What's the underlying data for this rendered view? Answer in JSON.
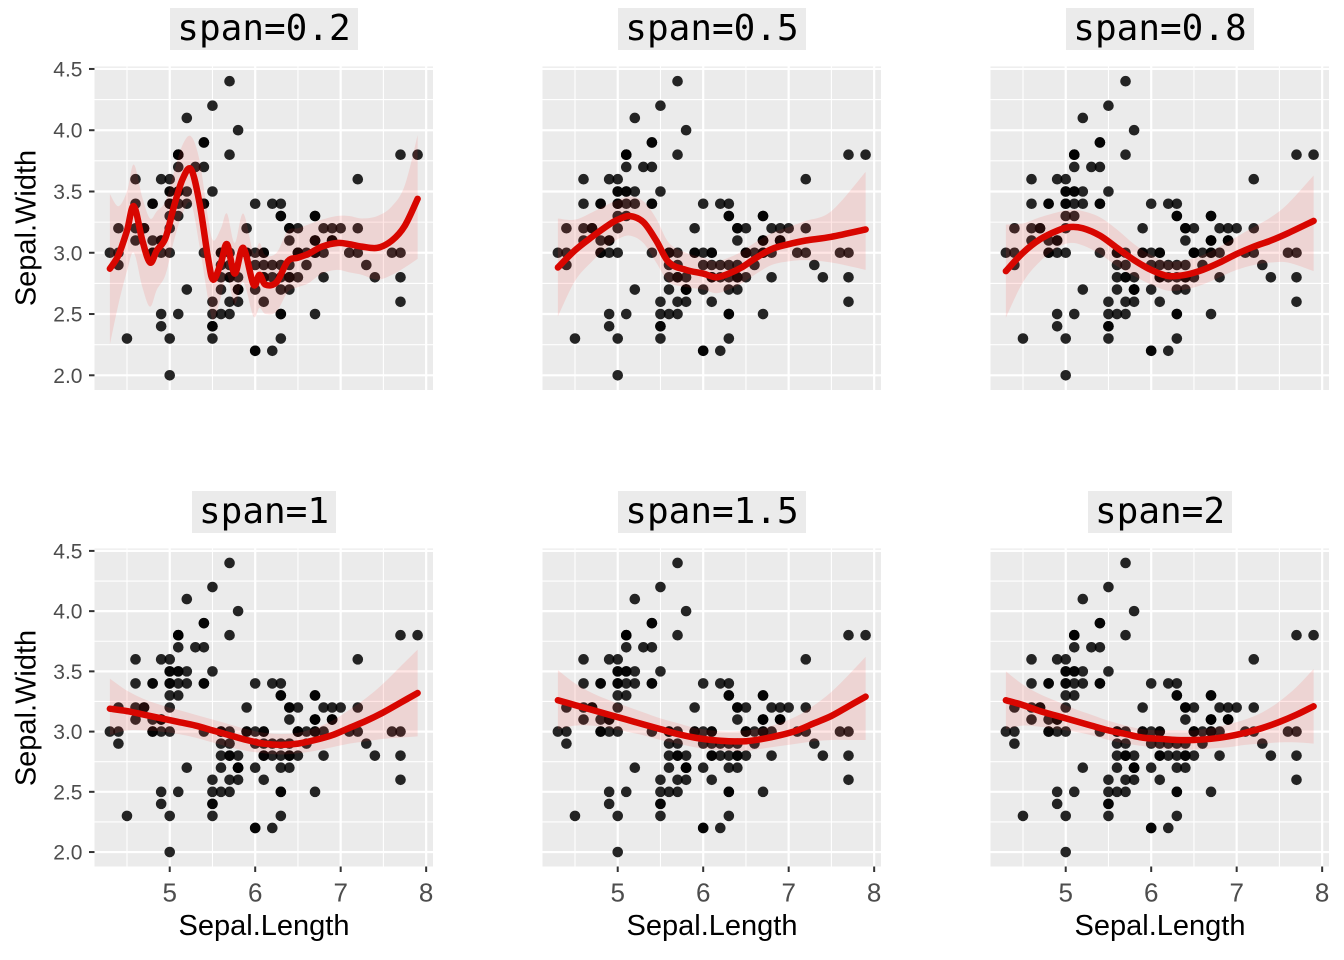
{
  "style": {
    "panel_bg": "#EBEBEB",
    "grid_color": "#FFFFFF",
    "point_color": "#000000",
    "point_opacity": 0.85,
    "line_color": "#D80600",
    "ribbon_fill": "rgba(255,60,55,0.13)",
    "tick_color": "#333333",
    "axis_text_color": "#4D4D4D"
  },
  "chart_data": {
    "type": "scatter",
    "title": "",
    "xlabel": "Sepal.Length",
    "ylabel": "Sepal.Width",
    "xlim": [
      4.12,
      8.08
    ],
    "ylim": [
      1.88,
      4.52
    ],
    "x_tick_values": [
      5,
      6,
      7,
      8
    ],
    "x_tick_labels": [
      "5",
      "6",
      "7",
      "8"
    ],
    "y_tick_values": [
      2.0,
      2.5,
      3.0,
      3.5,
      4.0,
      4.5
    ],
    "y_tick_labels": [
      "2.0",
      "2.5",
      "3.0",
      "3.5",
      "4.0",
      "4.5"
    ],
    "x_minor_ticks": [
      4.5,
      5.5,
      6.5,
      7.5
    ],
    "y_minor_ticks": [
      2.25,
      2.75,
      3.25,
      3.75,
      4.25
    ],
    "grid": "on",
    "legend": "none",
    "points": [
      [
        5.1,
        3.5
      ],
      [
        4.9,
        3.0
      ],
      [
        4.7,
        3.2
      ],
      [
        4.6,
        3.1
      ],
      [
        5.0,
        3.6
      ],
      [
        5.4,
        3.9
      ],
      [
        4.6,
        3.4
      ],
      [
        5.0,
        3.4
      ],
      [
        4.4,
        2.9
      ],
      [
        4.9,
        3.1
      ],
      [
        5.4,
        3.7
      ],
      [
        4.8,
        3.4
      ],
      [
        4.8,
        3.0
      ],
      [
        4.3,
        3.0
      ],
      [
        5.8,
        4.0
      ],
      [
        5.7,
        4.4
      ],
      [
        5.4,
        3.9
      ],
      [
        5.1,
        3.5
      ],
      [
        5.7,
        3.8
      ],
      [
        5.1,
        3.8
      ],
      [
        5.4,
        3.4
      ],
      [
        5.1,
        3.7
      ],
      [
        4.6,
        3.6
      ],
      [
        5.1,
        3.3
      ],
      [
        4.8,
        3.4
      ],
      [
        5.0,
        3.0
      ],
      [
        5.0,
        3.4
      ],
      [
        5.2,
        3.5
      ],
      [
        5.2,
        3.4
      ],
      [
        4.7,
        3.2
      ],
      [
        4.8,
        3.1
      ],
      [
        5.4,
        3.4
      ],
      [
        5.2,
        4.1
      ],
      [
        5.5,
        4.2
      ],
      [
        4.9,
        3.1
      ],
      [
        5.0,
        3.2
      ],
      [
        5.5,
        3.5
      ],
      [
        4.9,
        3.6
      ],
      [
        4.4,
        3.0
      ],
      [
        5.1,
        3.4
      ],
      [
        5.0,
        3.5
      ],
      [
        4.5,
        2.3
      ],
      [
        4.4,
        3.2
      ],
      [
        5.0,
        3.5
      ],
      [
        5.1,
        3.8
      ],
      [
        4.8,
        3.0
      ],
      [
        5.1,
        3.8
      ],
      [
        4.6,
        3.2
      ],
      [
        5.3,
        3.7
      ],
      [
        5.0,
        3.3
      ],
      [
        7.0,
        3.2
      ],
      [
        6.4,
        3.2
      ],
      [
        6.9,
        3.1
      ],
      [
        5.5,
        2.3
      ],
      [
        6.5,
        2.8
      ],
      [
        5.7,
        2.8
      ],
      [
        6.3,
        3.3
      ],
      [
        4.9,
        2.4
      ],
      [
        6.6,
        2.9
      ],
      [
        5.2,
        2.7
      ],
      [
        5.0,
        2.0
      ],
      [
        5.9,
        3.0
      ],
      [
        6.0,
        2.2
      ],
      [
        6.1,
        2.9
      ],
      [
        5.6,
        2.9
      ],
      [
        6.7,
        3.1
      ],
      [
        5.6,
        3.0
      ],
      [
        5.8,
        2.7
      ],
      [
        6.2,
        2.2
      ],
      [
        5.6,
        2.5
      ],
      [
        5.9,
        3.2
      ],
      [
        6.1,
        2.8
      ],
      [
        6.3,
        2.5
      ],
      [
        6.1,
        2.8
      ],
      [
        6.4,
        2.9
      ],
      [
        6.6,
        3.0
      ],
      [
        6.8,
        2.8
      ],
      [
        6.7,
        3.0
      ],
      [
        6.0,
        2.9
      ],
      [
        5.7,
        2.6
      ],
      [
        5.5,
        2.4
      ],
      [
        5.5,
        2.4
      ],
      [
        5.8,
        2.7
      ],
      [
        6.0,
        2.7
      ],
      [
        5.4,
        3.0
      ],
      [
        6.0,
        3.4
      ],
      [
        6.7,
        3.1
      ],
      [
        6.3,
        2.3
      ],
      [
        5.6,
        3.0
      ],
      [
        5.5,
        2.5
      ],
      [
        5.5,
        2.6
      ],
      [
        6.1,
        3.0
      ],
      [
        5.8,
        2.6
      ],
      [
        5.0,
        2.3
      ],
      [
        5.6,
        2.7
      ],
      [
        5.7,
        3.0
      ],
      [
        5.7,
        2.9
      ],
      [
        6.2,
        2.9
      ],
      [
        5.1,
        2.5
      ],
      [
        5.7,
        2.8
      ],
      [
        6.3,
        3.3
      ],
      [
        5.8,
        2.7
      ],
      [
        7.1,
        3.0
      ],
      [
        6.3,
        2.9
      ],
      [
        6.5,
        3.0
      ],
      [
        7.6,
        3.0
      ],
      [
        4.9,
        2.5
      ],
      [
        7.3,
        2.9
      ],
      [
        6.7,
        2.5
      ],
      [
        7.2,
        3.6
      ],
      [
        6.5,
        3.2
      ],
      [
        6.4,
        2.7
      ],
      [
        6.8,
        3.0
      ],
      [
        5.7,
        2.5
      ],
      [
        5.8,
        2.8
      ],
      [
        6.4,
        3.2
      ],
      [
        6.5,
        3.0
      ],
      [
        7.7,
        3.8
      ],
      [
        7.7,
        2.6
      ],
      [
        6.0,
        2.2
      ],
      [
        6.9,
        3.2
      ],
      [
        5.6,
        2.8
      ],
      [
        7.7,
        2.8
      ],
      [
        6.3,
        2.7
      ],
      [
        6.7,
        3.3
      ],
      [
        7.2,
        3.2
      ],
      [
        6.2,
        2.8
      ],
      [
        6.1,
        3.0
      ],
      [
        6.4,
        2.8
      ],
      [
        7.2,
        3.0
      ],
      [
        7.4,
        2.8
      ],
      [
        7.9,
        3.8
      ],
      [
        6.4,
        2.8
      ],
      [
        6.3,
        2.8
      ],
      [
        6.1,
        2.6
      ],
      [
        7.7,
        3.0
      ],
      [
        6.3,
        3.4
      ],
      [
        6.4,
        3.1
      ],
      [
        6.0,
        3.0
      ],
      [
        6.9,
        3.1
      ],
      [
        6.7,
        3.1
      ],
      [
        6.9,
        3.1
      ],
      [
        5.8,
        2.7
      ],
      [
        6.8,
        3.2
      ],
      [
        6.7,
        3.3
      ],
      [
        6.7,
        3.0
      ],
      [
        6.3,
        2.5
      ],
      [
        6.5,
        3.0
      ],
      [
        6.2,
        3.4
      ],
      [
        5.9,
        3.0
      ]
    ],
    "panels": [
      {
        "title": "span=0.2",
        "span": 0.2,
        "smooth": {
          "x": [
            4.3,
            4.4,
            4.5,
            4.58,
            4.68,
            4.77,
            4.85,
            4.95,
            5.05,
            5.15,
            5.25,
            5.35,
            5.45,
            5.51,
            5.6,
            5.67,
            5.76,
            5.86,
            5.98,
            6.05,
            6.12,
            6.25,
            6.38,
            6.5,
            6.62,
            6.78,
            6.96,
            7.1,
            7.25,
            7.43,
            7.6,
            7.75,
            7.9
          ],
          "y": [
            2.87,
            2.98,
            3.18,
            3.38,
            3.1,
            2.92,
            3.02,
            3.12,
            3.38,
            3.6,
            3.68,
            3.4,
            2.95,
            2.78,
            2.92,
            3.07,
            2.83,
            3.04,
            2.74,
            2.82,
            2.74,
            2.76,
            2.93,
            2.96,
            2.99,
            3.05,
            3.08,
            3.07,
            3.05,
            3.04,
            3.1,
            3.22,
            3.44
          ],
          "lo": [
            2.25,
            2.58,
            2.85,
            3.0,
            2.72,
            2.56,
            2.7,
            2.82,
            3.1,
            3.32,
            3.4,
            3.05,
            2.62,
            2.45,
            2.64,
            2.82,
            2.58,
            2.76,
            2.48,
            2.55,
            2.5,
            2.52,
            2.68,
            2.72,
            2.75,
            2.83,
            2.86,
            2.84,
            2.82,
            2.78,
            2.82,
            2.88,
            2.95
          ],
          "hi": [
            3.48,
            3.38,
            3.5,
            3.72,
            3.45,
            3.28,
            3.34,
            3.42,
            3.66,
            3.88,
            3.95,
            3.75,
            3.28,
            3.1,
            3.2,
            3.32,
            3.08,
            3.32,
            3.0,
            3.08,
            2.98,
            3.0,
            3.18,
            3.2,
            3.23,
            3.27,
            3.3,
            3.3,
            3.28,
            3.3,
            3.38,
            3.55,
            3.96
          ]
        }
      },
      {
        "title": "span=0.5",
        "span": 0.5,
        "smooth": {
          "x": [
            4.3,
            4.5,
            4.7,
            4.9,
            5.0,
            5.14,
            5.3,
            5.45,
            5.6,
            5.8,
            6.0,
            6.15,
            6.3,
            6.45,
            6.6,
            6.8,
            7.0,
            7.2,
            7.5,
            7.9
          ],
          "y": [
            2.88,
            3.02,
            3.13,
            3.23,
            3.27,
            3.3,
            3.25,
            3.1,
            2.92,
            2.86,
            2.83,
            2.8,
            2.83,
            2.88,
            2.95,
            3.03,
            3.07,
            3.1,
            3.13,
            3.19
          ],
          "lo": [
            2.48,
            2.77,
            2.93,
            3.06,
            3.11,
            3.14,
            3.08,
            2.92,
            2.76,
            2.72,
            2.7,
            2.67,
            2.7,
            2.75,
            2.82,
            2.9,
            2.93,
            2.94,
            2.92,
            2.86
          ],
          "hi": [
            3.28,
            3.27,
            3.33,
            3.4,
            3.43,
            3.46,
            3.42,
            3.28,
            3.08,
            3.0,
            2.96,
            2.93,
            2.96,
            3.01,
            3.08,
            3.16,
            3.21,
            3.26,
            3.34,
            3.66
          ]
        }
      },
      {
        "title": "span=0.8",
        "span": 0.8,
        "smooth": {
          "x": [
            4.3,
            4.5,
            4.7,
            4.9,
            5.05,
            5.2,
            5.4,
            5.6,
            5.8,
            6.0,
            6.2,
            6.4,
            6.6,
            6.8,
            7.0,
            7.2,
            7.4,
            7.6,
            7.9
          ],
          "y": [
            2.85,
            3.0,
            3.11,
            3.18,
            3.21,
            3.2,
            3.14,
            3.04,
            2.94,
            2.86,
            2.81,
            2.82,
            2.86,
            2.92,
            2.99,
            3.05,
            3.1,
            3.16,
            3.26
          ],
          "lo": [
            2.47,
            2.76,
            2.93,
            3.04,
            3.08,
            3.06,
            2.99,
            2.89,
            2.81,
            2.74,
            2.69,
            2.7,
            2.74,
            2.8,
            2.86,
            2.9,
            2.92,
            2.92,
            2.85
          ],
          "hi": [
            3.23,
            3.24,
            3.29,
            3.33,
            3.35,
            3.34,
            3.29,
            3.19,
            3.07,
            2.98,
            2.93,
            2.94,
            2.98,
            3.05,
            3.13,
            3.21,
            3.29,
            3.4,
            3.63
          ]
        }
      },
      {
        "title": "span=1",
        "span": 1,
        "smooth": {
          "x": [
            4.3,
            4.5,
            4.7,
            4.9,
            5.1,
            5.3,
            5.5,
            5.7,
            5.9,
            6.1,
            6.3,
            6.5,
            6.7,
            6.9,
            7.1,
            7.3,
            7.5,
            7.7,
            7.9
          ],
          "y": [
            3.19,
            3.17,
            3.14,
            3.11,
            3.08,
            3.05,
            3.01,
            2.97,
            2.93,
            2.9,
            2.89,
            2.9,
            2.93,
            2.97,
            3.03,
            3.09,
            3.16,
            3.24,
            3.32
          ],
          "lo": [
            2.97,
            3.01,
            3.01,
            3.0,
            2.98,
            2.95,
            2.91,
            2.87,
            2.84,
            2.82,
            2.81,
            2.82,
            2.84,
            2.87,
            2.9,
            2.92,
            2.94,
            2.95,
            2.96
          ],
          "hi": [
            3.44,
            3.34,
            3.27,
            3.22,
            3.18,
            3.14,
            3.1,
            3.06,
            3.02,
            2.99,
            2.98,
            2.99,
            3.03,
            3.09,
            3.18,
            3.28,
            3.4,
            3.54,
            3.68
          ]
        }
      },
      {
        "title": "span=1.5",
        "span": 1.5,
        "smooth": {
          "x": [
            4.3,
            4.5,
            4.7,
            4.9,
            5.1,
            5.3,
            5.5,
            5.7,
            5.9,
            6.1,
            6.3,
            6.5,
            6.7,
            6.9,
            7.1,
            7.3,
            7.5,
            7.7,
            7.9
          ],
          "y": [
            3.26,
            3.22,
            3.18,
            3.14,
            3.1,
            3.06,
            3.02,
            2.98,
            2.95,
            2.93,
            2.92,
            2.92,
            2.94,
            2.97,
            3.01,
            3.07,
            3.13,
            3.21,
            3.29
          ],
          "lo": [
            3.02,
            3.05,
            3.05,
            3.03,
            3.0,
            2.97,
            2.93,
            2.9,
            2.87,
            2.85,
            2.84,
            2.84,
            2.86,
            2.88,
            2.9,
            2.92,
            2.93,
            2.93,
            2.93
          ],
          "hi": [
            3.51,
            3.4,
            3.32,
            3.26,
            3.21,
            3.16,
            3.11,
            3.07,
            3.03,
            3.01,
            3.0,
            3.01,
            3.03,
            3.07,
            3.13,
            3.22,
            3.33,
            3.47,
            3.62
          ]
        }
      },
      {
        "title": "span=2",
        "span": 2,
        "smooth": {
          "x": [
            4.3,
            4.5,
            4.7,
            4.9,
            5.1,
            5.3,
            5.5,
            5.7,
            5.9,
            6.1,
            6.3,
            6.5,
            6.7,
            6.9,
            7.1,
            7.3,
            7.5,
            7.7,
            7.9
          ],
          "y": [
            3.26,
            3.22,
            3.17,
            3.13,
            3.09,
            3.05,
            3.01,
            2.98,
            2.95,
            2.94,
            2.93,
            2.93,
            2.94,
            2.96,
            2.99,
            3.03,
            3.08,
            3.14,
            3.21
          ],
          "lo": [
            3.02,
            3.05,
            3.04,
            3.02,
            3.0,
            2.97,
            2.93,
            2.9,
            2.88,
            2.86,
            2.85,
            2.85,
            2.86,
            2.87,
            2.89,
            2.9,
            2.91,
            2.91,
            2.9
          ],
          "hi": [
            3.5,
            3.39,
            3.31,
            3.25,
            3.19,
            3.14,
            3.09,
            3.05,
            3.02,
            3.01,
            3.01,
            3.01,
            3.03,
            3.06,
            3.1,
            3.16,
            3.25,
            3.37,
            3.52
          ]
        }
      }
    ]
  }
}
